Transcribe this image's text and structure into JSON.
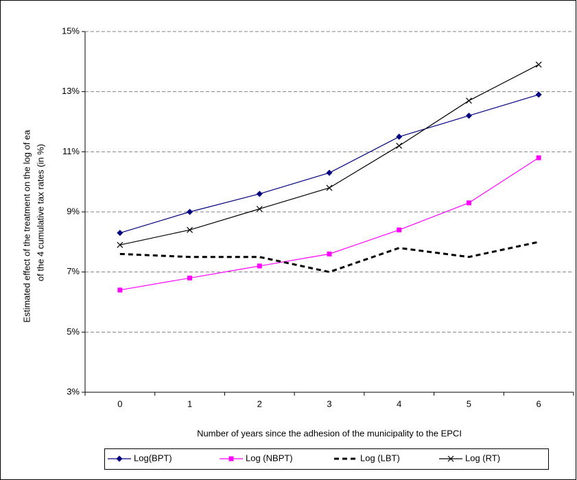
{
  "chart_data": {
    "type": "line",
    "y_label_lines": [
      "Estimated effect of the treatment on the log of ea",
      "of the 4 cumulative tax rates (in %)"
    ],
    "x_label": "Number of years since the adhesion of the municipality to the EPCI",
    "categories": [
      "0",
      "1",
      "2",
      "3",
      "4",
      "5",
      "6"
    ],
    "series": [
      {
        "name": "Log(BPT)",
        "color": "#000080",
        "marker": "diamond",
        "dashed": false,
        "values": [
          8.3,
          9.0,
          9.6,
          10.3,
          11.5,
          12.2,
          12.9
        ]
      },
      {
        "name": "Log (NBPT)",
        "color": "#ff00ff",
        "marker": "square",
        "dashed": false,
        "values": [
          6.4,
          6.8,
          7.2,
          7.6,
          8.4,
          9.3,
          10.8
        ]
      },
      {
        "name": "Log (LBT)",
        "color": "#000000",
        "marker": "none",
        "dashed": true,
        "values": [
          7.6,
          7.5,
          7.5,
          7.0,
          7.8,
          7.5,
          8.0
        ]
      },
      {
        "name": "Log (RT)",
        "color": "#000000",
        "marker": "x",
        "dashed": false,
        "values": [
          7.9,
          8.4,
          9.1,
          9.8,
          11.2,
          12.7,
          13.9
        ]
      }
    ],
    "ylim": [
      3,
      15
    ],
    "yticks": [
      {
        "value": 3,
        "label": "3%"
      },
      {
        "value": 5,
        "label": "5%"
      },
      {
        "value": 7,
        "label": "7%"
      },
      {
        "value": 9,
        "label": "9%"
      },
      {
        "value": 11,
        "label": "11%"
      },
      {
        "value": 13,
        "label": "13%"
      },
      {
        "value": 15,
        "label": "15%"
      }
    ],
    "grid": true,
    "legend": "bottom"
  }
}
